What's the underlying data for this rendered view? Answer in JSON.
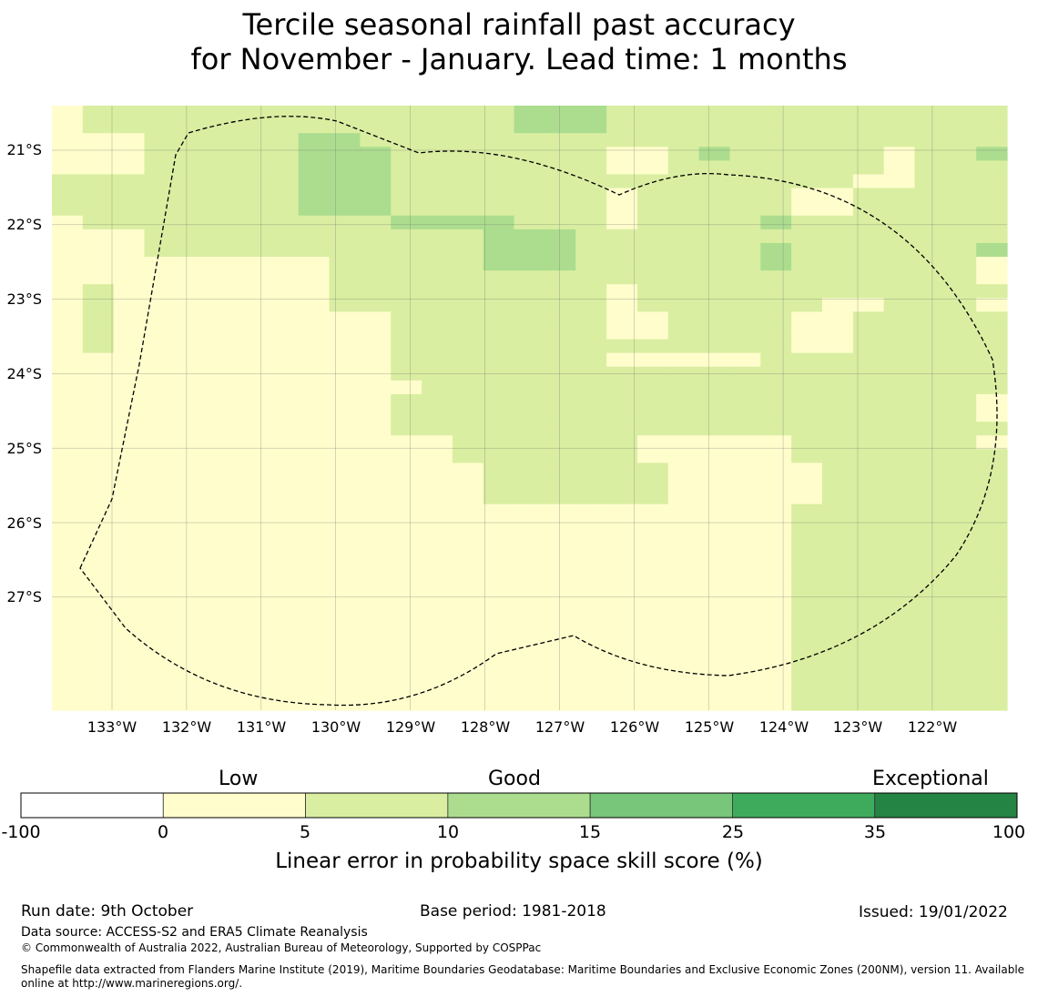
{
  "title": {
    "line1": "Tercile seasonal rainfall past accuracy",
    "line2": "for November - January. Lead time: 1 months"
  },
  "map": {
    "lat_labels": [
      "21°S",
      "22°S",
      "23°S",
      "24°S",
      "25°S",
      "26°S",
      "27°S"
    ],
    "lon_labels": [
      "133°W",
      "132°W",
      "131°W",
      "130°W",
      "129°W",
      "128°W",
      "127°W",
      "126°W",
      "125°W",
      "124°W",
      "123°W",
      "122°W"
    ],
    "colors": {
      "white": "#ffffff",
      "yellow": "#fffdcc",
      "light_green": "#d9eea1",
      "medium_green": "#acdd8e",
      "green": "#78c679",
      "dark_green": "#3eab5c",
      "darkest_green": "#238443"
    },
    "grid_legend": "0 = <0, 1 = 0-5, 2 = 5-10, 3 = 10-15",
    "grid_rows": [
      "1222222222222223332222222222222",
      "1222222222222223332222222222222",
      "1112222233222222222222222222222",
      "1112222233322222221123222221223",
      "1112222233322222221122222221222",
      "2222222233322222222222222211222",
      "2222222233322222221222221122222",
      "2222222233322222221222221122222",
      "1222222222233332221222232222222",
      "1112222222222233322222222222222",
      "1112222222222233322222232222223",
      "1111111112222233322222232222221",
      "1111111112222222222222222222221",
      "1211111112222222221222222222222",
      "1211111112222222221222222112221",
      "1211111111122222221122221122222",
      "1211111111122222221122221122222",
      "1211111111122222222222221122222",
      "1111111111122222221111122222222",
      "1111111111122222222222222222222",
      "1111111111112222222222222222222",
      "1111111111122222222222222222221",
      "1111111111122222222222222222221",
      "1111111111122222222222222222222",
      "1111111111111222222111112222221",
      "1111111111111222222111112222222",
      "1111111111111122222211111222222",
      "1111111111111122222211111222222",
      "1111111111111122222211111222222",
      "1111111111111111111111112222222",
      "1111111111111111111111112222222",
      "1111111111111111111111112222222",
      "1111111111111111111111112222222",
      "1111111111111111111111112222222",
      "1111111111111111111111112222222",
      "1111111111111111111111112222222",
      "1111111111111111111111112222222",
      "1111111111111111111111112222222",
      "1111111111111111111111112222222",
      "1111111111111111111111112222222",
      "1111111111111111111111112222222",
      "1111111111111111111111112222222",
      "1111111111111111111111112222222",
      "1111111111111111111111112222222"
    ]
  },
  "colorbar": {
    "category_labels": [
      "Low",
      "Good",
      "Exceptional"
    ],
    "ticks": [
      "-100",
      "0",
      "5",
      "10",
      "15",
      "25",
      "35",
      "100"
    ],
    "title": "Linear error in probability space skill score (%)"
  },
  "footer": {
    "run_date": "Run date: 9th October",
    "base_period": "Base period: 1981-2018",
    "issued": "Issued: 19/01/2022",
    "data_source": "Data source: ACCESS-S2 and ERA5 Climate Reanalysis",
    "copyright": "© Commonwealth of Australia 2022, Australian Bureau of Meteorology, Supported by COSPPac",
    "shapefile_line1": "Shapefile data extracted from Flanders Marine Institute (2019), Maritime Boundaries Geodatabase: Maritime Boundaries and Exclusive Economic Zones (200NM), version 11. Available",
    "shapefile_line2": "online at http://www.marineregions.org/."
  }
}
